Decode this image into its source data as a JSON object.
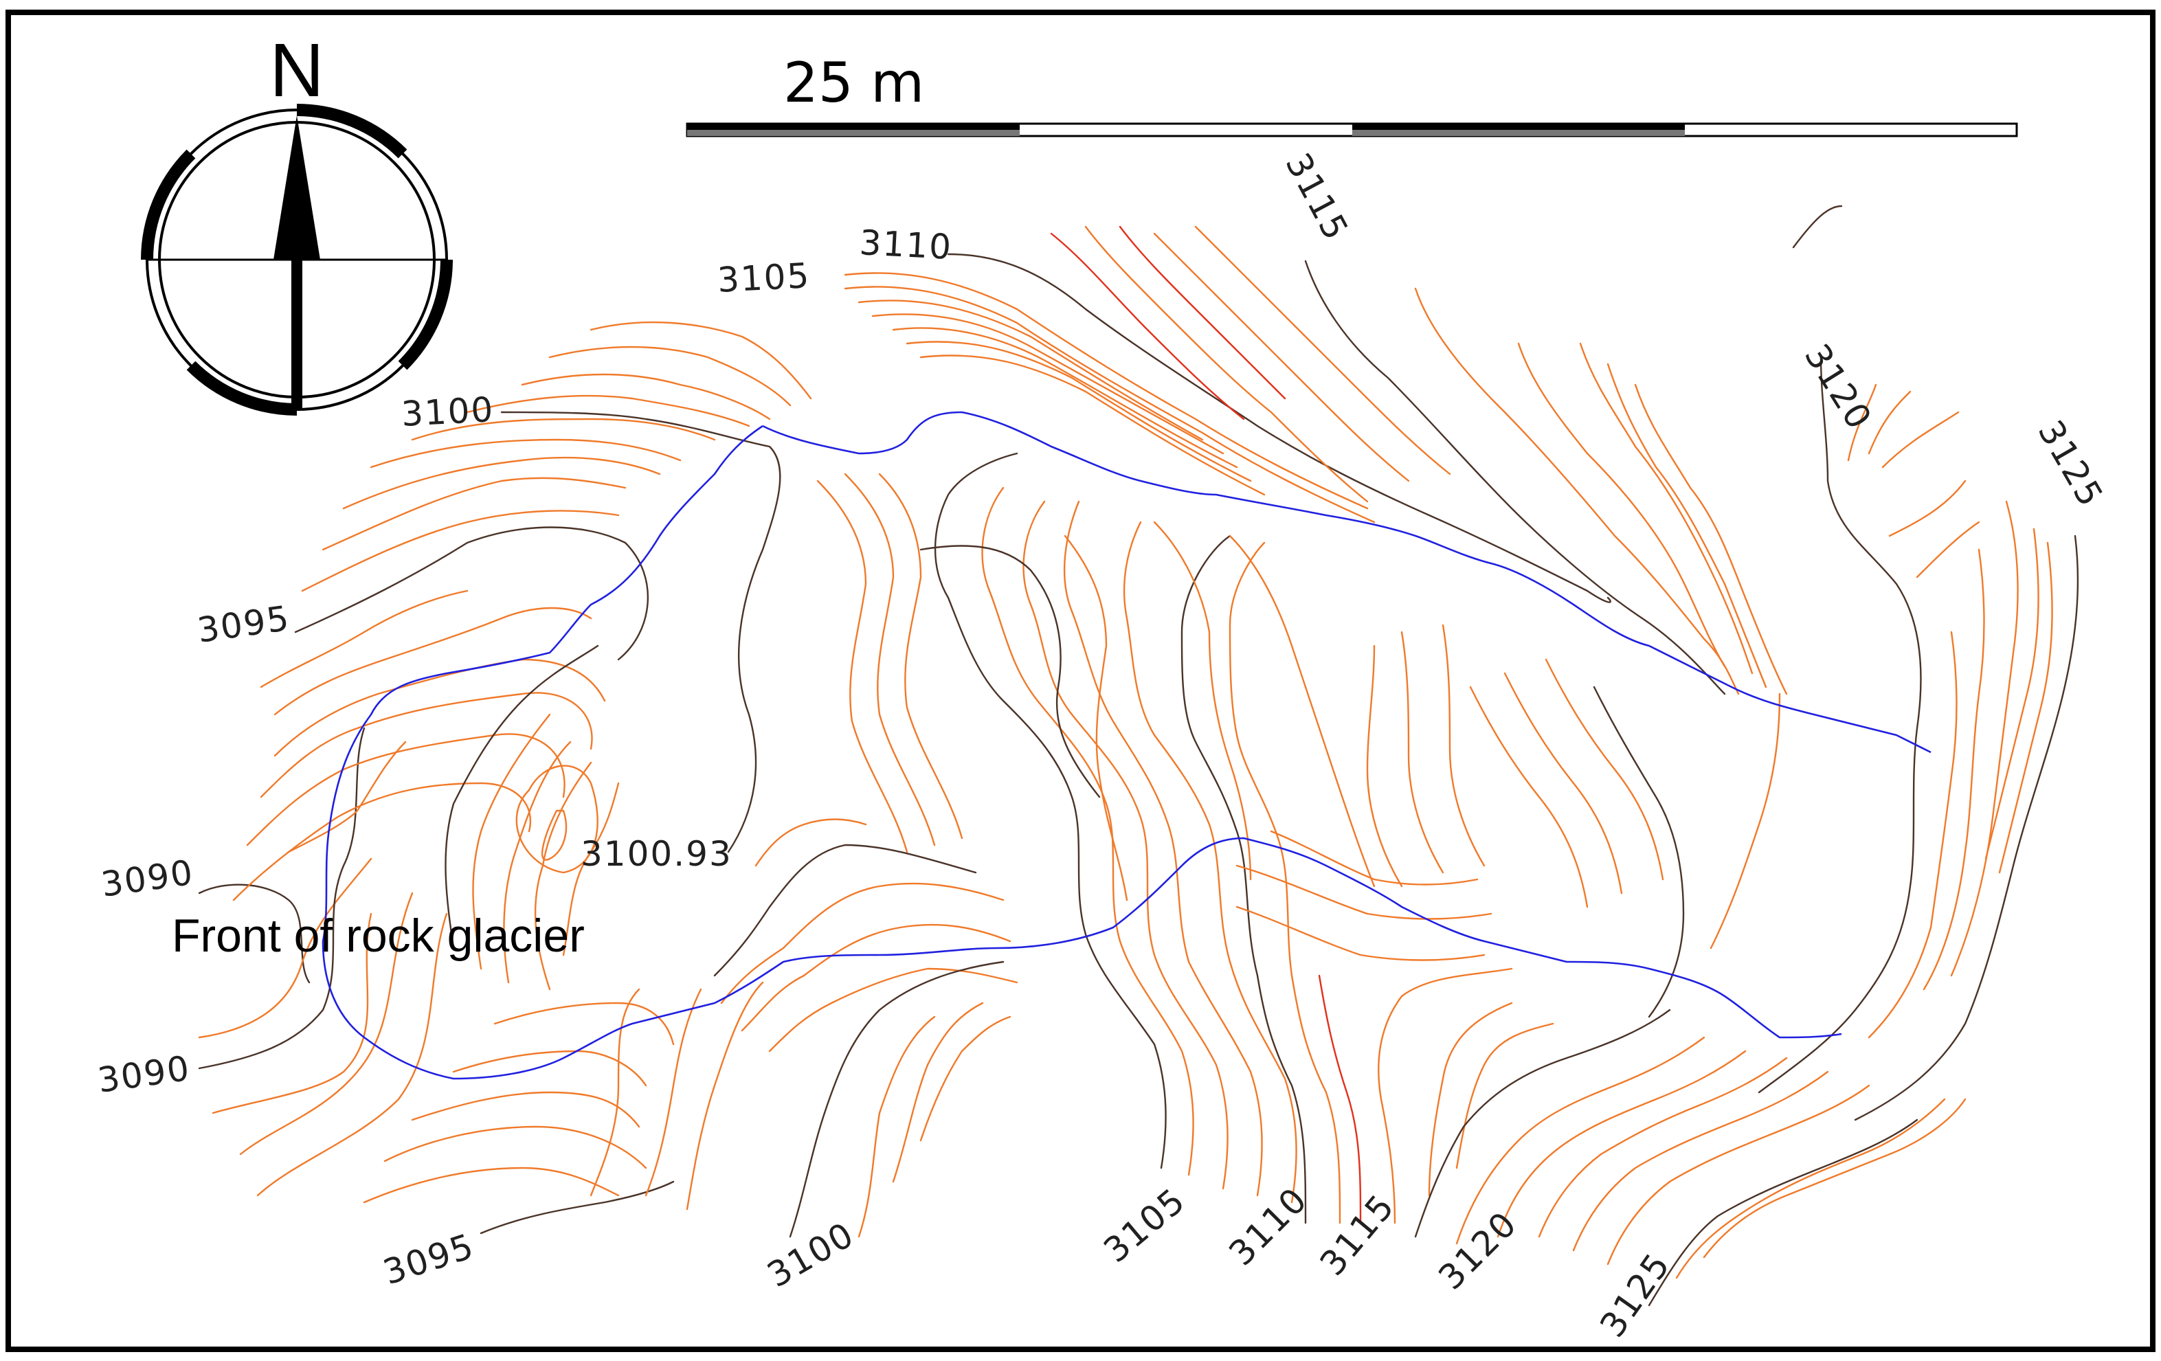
{
  "map": {
    "north_label": "N",
    "scale_label": "25 m",
    "feature_label": "Front of rock glacier",
    "spot_height": "3100.93",
    "contour_labels": [
      "3090",
      "3090",
      "3095",
      "3095",
      "3100",
      "3100",
      "3105",
      "3105",
      "3110",
      "3110",
      "3115",
      "3115",
      "3120",
      "3120",
      "3125",
      "3125"
    ],
    "colors": {
      "minor_contour": "#f07a2a",
      "major_contour": "#4a3328",
      "steep_contour": "#e2301c",
      "rock_glacier_outline": "#2020e0"
    }
  }
}
